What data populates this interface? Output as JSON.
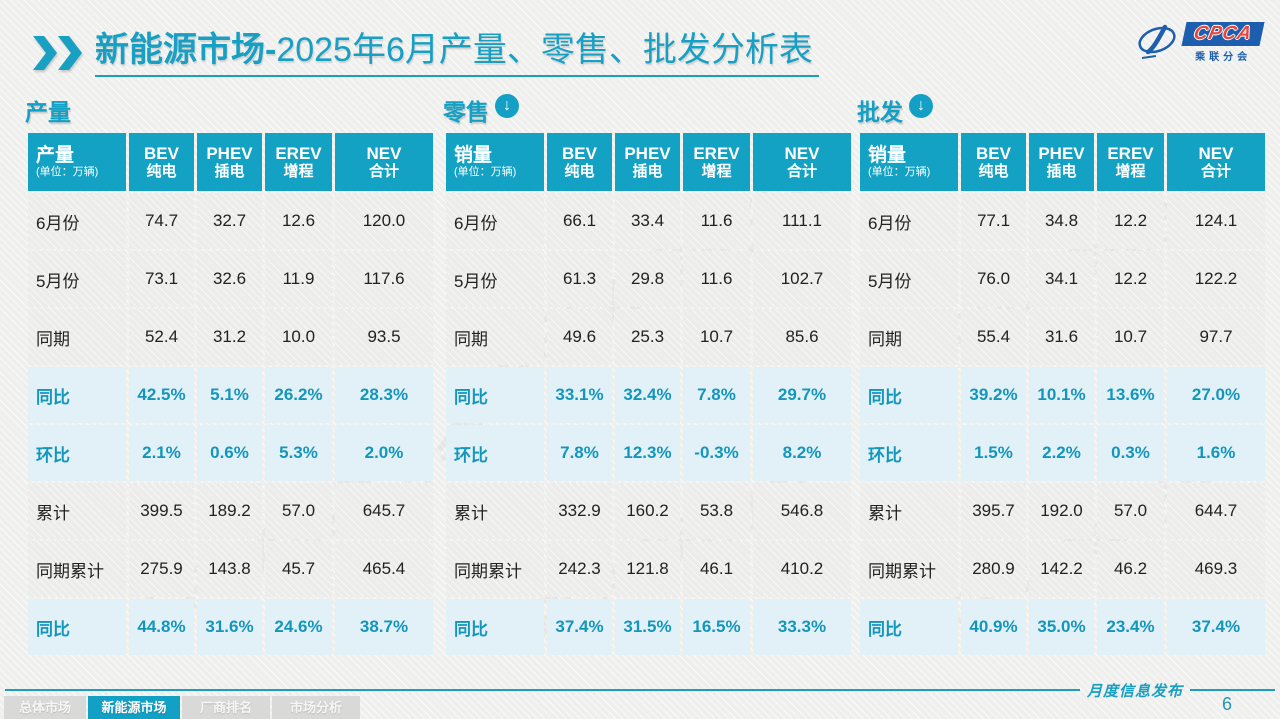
{
  "title": {
    "bold": "新能源市场-",
    "rest": "2025年6月产量、零售、批发分析表"
  },
  "logo": {
    "acronym": "CPCA",
    "subtitle": "乘联分会"
  },
  "watermark": "CPCA乘联分会",
  "tables": [
    {
      "section_label": "产量",
      "has_arrow": false,
      "header": {
        "label": "产量",
        "unit": "(单位：万辆)",
        "cols": [
          [
            "BEV",
            "纯电"
          ],
          [
            "PHEV",
            "插电"
          ],
          [
            "EREV",
            "增程"
          ],
          [
            "NEV",
            "合计"
          ]
        ]
      },
      "rows": [
        {
          "label": "6月份",
          "values": [
            "74.7",
            "32.7",
            "12.6",
            "120.0"
          ],
          "highlight": false
        },
        {
          "label": "5月份",
          "values": [
            "73.1",
            "32.6",
            "11.9",
            "117.6"
          ],
          "highlight": false
        },
        {
          "label": "同期",
          "values": [
            "52.4",
            "31.2",
            "10.0",
            "93.5"
          ],
          "highlight": false
        },
        {
          "label": "同比",
          "values": [
            "42.5%",
            "5.1%",
            "26.2%",
            "28.3%"
          ],
          "highlight": true
        },
        {
          "label": "环比",
          "values": [
            "2.1%",
            "0.6%",
            "5.3%",
            "2.0%"
          ],
          "highlight": true
        },
        {
          "label": "累计",
          "values": [
            "399.5",
            "189.2",
            "57.0",
            "645.7"
          ],
          "highlight": false
        },
        {
          "label": "同期累计",
          "values": [
            "275.9",
            "143.8",
            "45.7",
            "465.4"
          ],
          "highlight": false
        },
        {
          "label": "同比",
          "values": [
            "44.8%",
            "31.6%",
            "24.6%",
            "38.7%"
          ],
          "highlight": true
        }
      ]
    },
    {
      "section_label": "零售",
      "has_arrow": true,
      "header": {
        "label": "销量",
        "unit": "(单位：万辆)",
        "cols": [
          [
            "BEV",
            "纯电"
          ],
          [
            "PHEV",
            "插电"
          ],
          [
            "EREV",
            "增程"
          ],
          [
            "NEV",
            "合计"
          ]
        ]
      },
      "rows": [
        {
          "label": "6月份",
          "values": [
            "66.1",
            "33.4",
            "11.6",
            "111.1"
          ],
          "highlight": false
        },
        {
          "label": "5月份",
          "values": [
            "61.3",
            "29.8",
            "11.6",
            "102.7"
          ],
          "highlight": false
        },
        {
          "label": "同期",
          "values": [
            "49.6",
            "25.3",
            "10.7",
            "85.6"
          ],
          "highlight": false
        },
        {
          "label": "同比",
          "values": [
            "33.1%",
            "32.4%",
            "7.8%",
            "29.7%"
          ],
          "highlight": true
        },
        {
          "label": "环比",
          "values": [
            "7.8%",
            "12.3%",
            "-0.3%",
            "8.2%"
          ],
          "highlight": true
        },
        {
          "label": "累计",
          "values": [
            "332.9",
            "160.2",
            "53.8",
            "546.8"
          ],
          "highlight": false
        },
        {
          "label": "同期累计",
          "values": [
            "242.3",
            "121.8",
            "46.1",
            "410.2"
          ],
          "highlight": false
        },
        {
          "label": "同比",
          "values": [
            "37.4%",
            "31.5%",
            "16.5%",
            "33.3%"
          ],
          "highlight": true
        }
      ]
    },
    {
      "section_label": "批发",
      "has_arrow": true,
      "header": {
        "label": "销量",
        "unit": "(单位：万辆)",
        "cols": [
          [
            "BEV",
            "纯电"
          ],
          [
            "PHEV",
            "插电"
          ],
          [
            "EREV",
            "增程"
          ],
          [
            "NEV",
            "合计"
          ]
        ]
      },
      "rows": [
        {
          "label": "6月份",
          "values": [
            "77.1",
            "34.8",
            "12.2",
            "124.1"
          ],
          "highlight": false
        },
        {
          "label": "5月份",
          "values": [
            "76.0",
            "34.1",
            "12.2",
            "122.2"
          ],
          "highlight": false
        },
        {
          "label": "同期",
          "values": [
            "55.4",
            "31.6",
            "10.7",
            "97.7"
          ],
          "highlight": false
        },
        {
          "label": "同比",
          "values": [
            "39.2%",
            "10.1%",
            "13.6%",
            "27.0%"
          ],
          "highlight": true
        },
        {
          "label": "环比",
          "values": [
            "1.5%",
            "2.2%",
            "0.3%",
            "1.6%"
          ],
          "highlight": true
        },
        {
          "label": "累计",
          "values": [
            "395.7",
            "192.0",
            "57.0",
            "644.7"
          ],
          "highlight": false
        },
        {
          "label": "同期累计",
          "values": [
            "280.9",
            "142.2",
            "46.2",
            "469.3"
          ],
          "highlight": false
        },
        {
          "label": "同比",
          "values": [
            "40.9%",
            "35.0%",
            "23.4%",
            "37.4%"
          ],
          "highlight": true
        }
      ]
    }
  ],
  "footer": {
    "tabs": [
      {
        "label": "总体市场",
        "active": false
      },
      {
        "label": "新能源市场",
        "active": true
      },
      {
        "label": "厂商排名",
        "active": false
      },
      {
        "label": "市场分析",
        "active": false
      }
    ],
    "publish": "月度信息发布",
    "page": "6"
  }
}
